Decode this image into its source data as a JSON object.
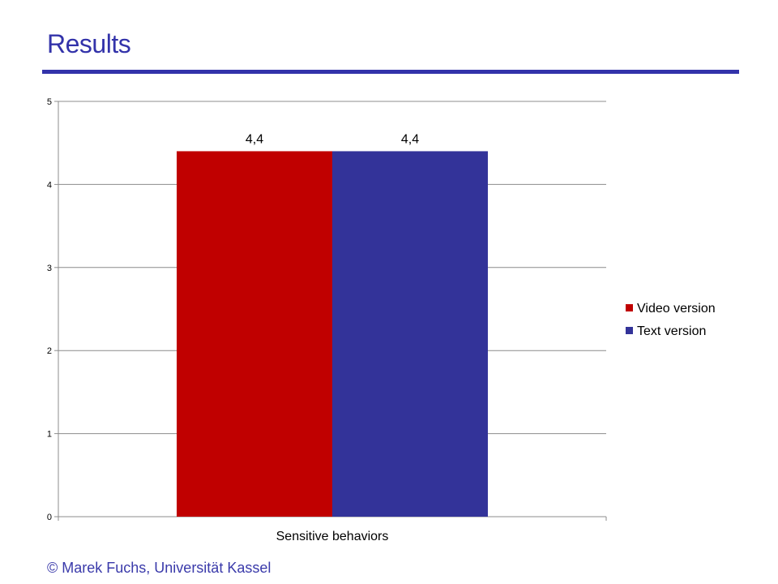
{
  "slide": {
    "title": "Results",
    "footer": "© Marek Fuchs, Universität Kassel"
  },
  "chart_data": {
    "type": "bar",
    "categories": [
      "Sensitive behaviors"
    ],
    "series": [
      {
        "name": "Video version",
        "values": [
          4.4
        ],
        "color": "#c00000",
        "data_labels": [
          "4,4"
        ]
      },
      {
        "name": "Text version",
        "values": [
          4.4
        ],
        "color": "#333399",
        "data_labels": [
          "4,4"
        ]
      }
    ],
    "title": "",
    "xlabel": "",
    "ylabel": "",
    "ylim": [
      0,
      5
    ],
    "yticks": [
      0,
      1,
      2,
      3,
      4,
      5
    ],
    "grid": true,
    "legend_position": "right"
  }
}
